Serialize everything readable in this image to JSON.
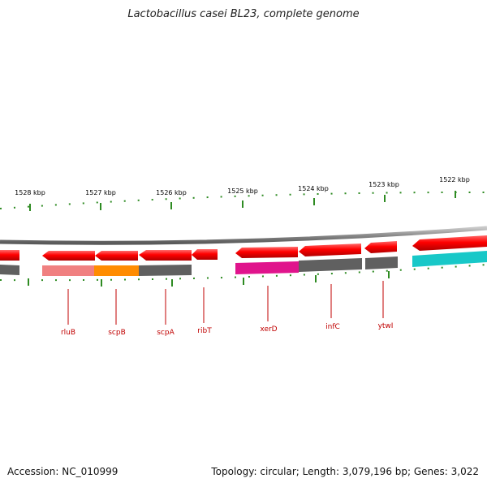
{
  "title": "Lactobacillus casei BL23, complete genome",
  "footer": {
    "accession": "Accession: NC_010999",
    "summary": "Topology: circular; Length: 3,079,196 bp; Genes: 3,022"
  },
  "scale_labels": [
    "1528 kbp",
    "1527 kbp",
    "1526 kbp",
    "1525 kbp",
    "1524 kbp",
    "1523 kbp",
    "1522 kbp"
  ],
  "genes": [
    "rluB",
    "scpB",
    "scpA",
    "ribT",
    "xerD",
    "infC",
    "ytwI"
  ],
  "colors": {
    "feature_red": "#ff0000",
    "feature_grey": "#606060",
    "feature_pink": "#f08080",
    "feature_orange": "#ff8c00",
    "feature_magenta": "#e0148c",
    "feature_cyan": "#18c8c8",
    "tick_green": "#2e8b22",
    "label_red": "#c00000"
  }
}
